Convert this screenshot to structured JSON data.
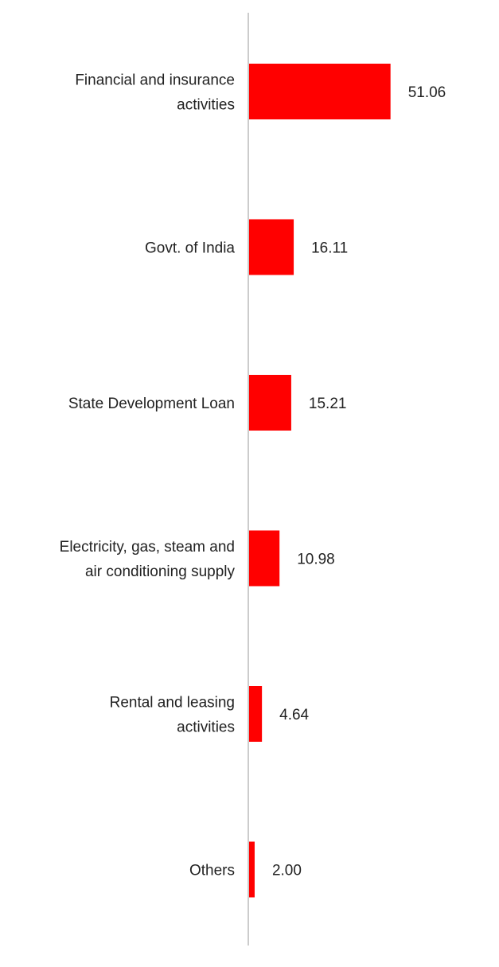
{
  "chart_data": {
    "type": "bar",
    "orientation": "horizontal",
    "categories": [
      "Financial and insurance activities",
      "Govt. of India",
      "State Development Loan",
      "Electricity, gas, steam and air conditioning supply",
      "Rental and leasing activities",
      "Others"
    ],
    "category_lines": [
      [
        "Financial and insurance",
        "activities"
      ],
      [
        "Govt. of India"
      ],
      [
        "State Development Loan"
      ],
      [
        "Electricity, gas, steam and",
        "air conditioning supply"
      ],
      [
        "Rental and leasing",
        "activities"
      ],
      [
        "Others"
      ]
    ],
    "values": [
      51.06,
      16.11,
      15.21,
      10.98,
      4.64,
      2.0
    ],
    "value_labels": [
      "51.06",
      "16.11",
      "15.21",
      "10.98",
      "4.64",
      "2.00"
    ],
    "bar_color": "#ff0000",
    "axis_color": "#cccccc",
    "title": "",
    "xlabel": "",
    "ylabel": "",
    "grid": false,
    "legend": "none"
  }
}
